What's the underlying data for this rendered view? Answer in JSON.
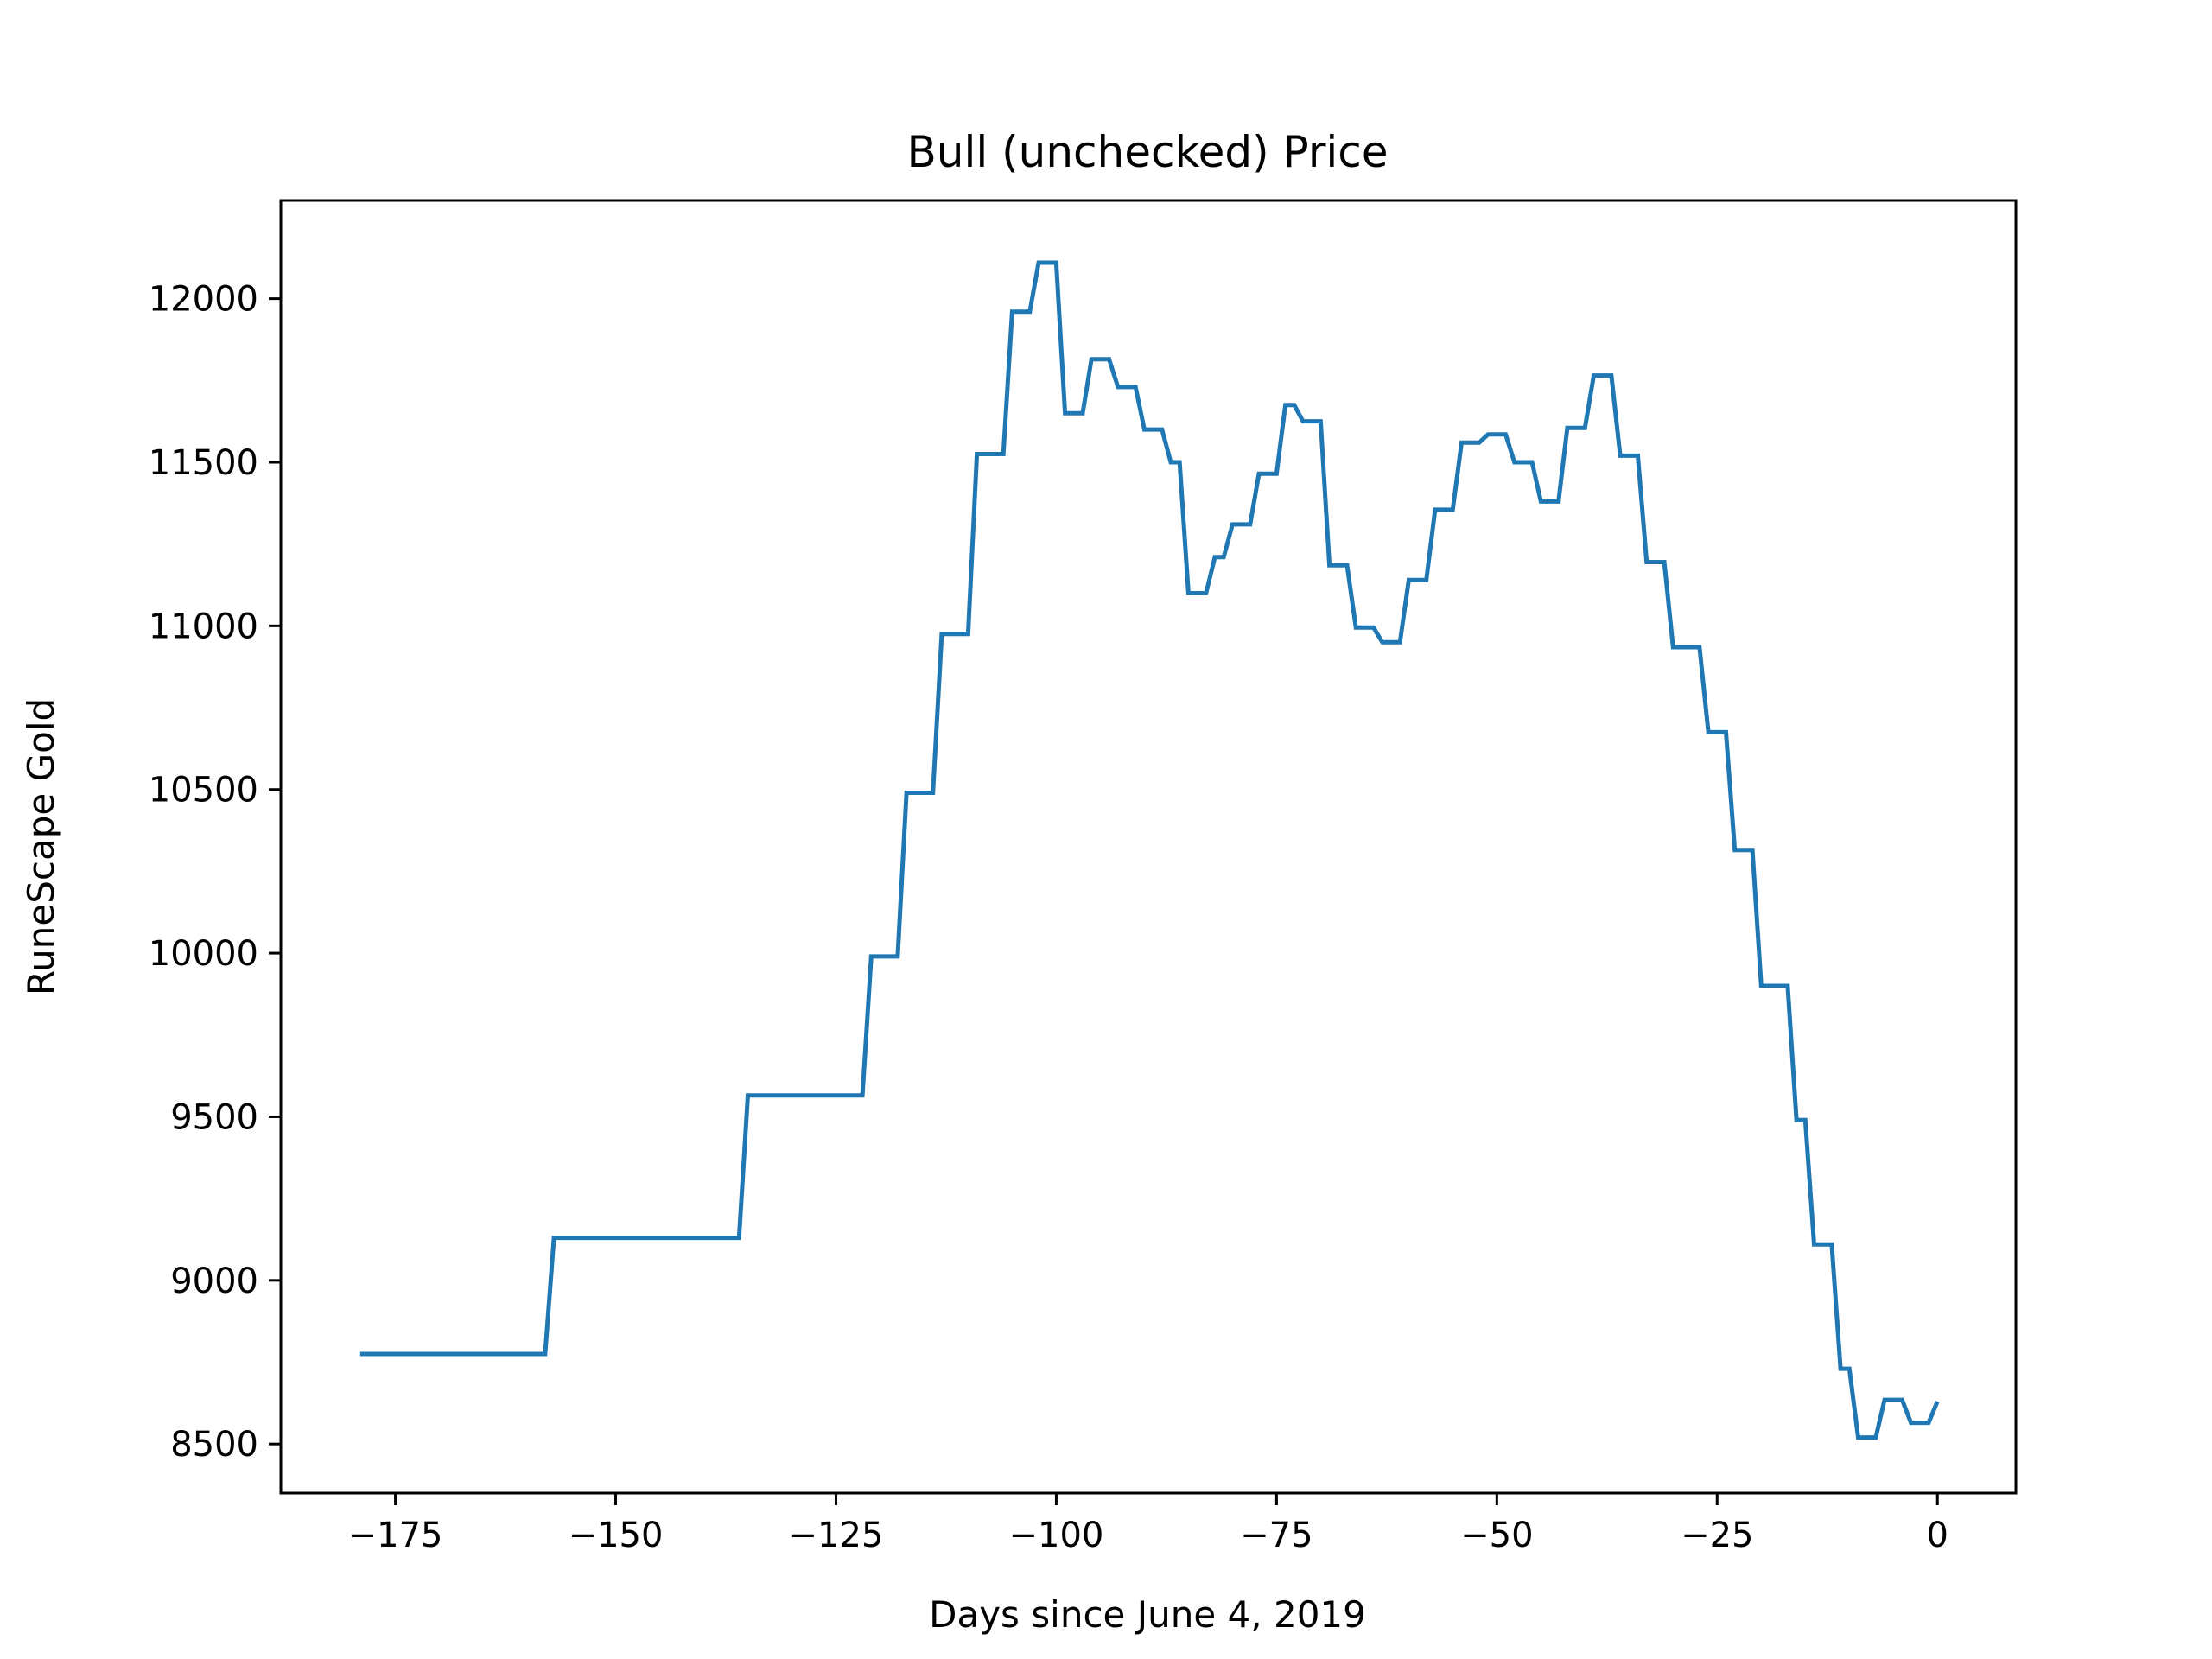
{
  "chart_data": {
    "type": "line",
    "title": "Bull (unchecked) Price",
    "xlabel": "Days since June 4, 2019",
    "ylabel": "RuneScape Gold",
    "xlim": [
      -188,
      8.9
    ],
    "ylim": [
      8350,
      12300
    ],
    "xticks": [
      -175,
      -150,
      -125,
      -100,
      -75,
      -50,
      -25,
      0
    ],
    "xtick_labels": [
      "−175",
      "−150",
      "−125",
      "−100",
      "−75",
      "−50",
      "−25",
      "0"
    ],
    "yticks": [
      8500,
      9000,
      9500,
      10000,
      10500,
      11000,
      11500,
      12000
    ],
    "ytick_labels": [
      "8500",
      "9000",
      "9500",
      "10000",
      "10500",
      "11000",
      "11500",
      "12000"
    ],
    "grid": false,
    "line_color": "#1f77b4",
    "series": [
      {
        "x": [
          -179,
          -158,
          -157,
          -136,
          -135,
          -122,
          -121,
          -118,
          -117,
          -114,
          -113,
          -110,
          -109,
          -106,
          -105,
          -103,
          -102,
          -100,
          -99,
          -97,
          -96,
          -94,
          -93,
          -91,
          -90,
          -88,
          -87,
          -86,
          -85,
          -83,
          -82,
          -81,
          -80,
          -78,
          -77,
          -75,
          -74,
          -73,
          -72,
          -70,
          -69,
          -67,
          -66,
          -64,
          -63,
          -61,
          -60,
          -58,
          -57,
          -55,
          -54,
          -52,
          -51,
          -49,
          -48,
          -46,
          -45,
          -43,
          -42,
          -40,
          -39,
          -37,
          -36,
          -34,
          -33,
          -31,
          -30,
          -27,
          -26,
          -24,
          -23,
          -21,
          -20,
          -17,
          -16,
          -15,
          -14,
          -12,
          -11,
          -10,
          -9,
          -7,
          -6,
          -4,
          -3,
          -1,
          0
        ],
        "y": [
          8775,
          8775,
          9130,
          9130,
          9565,
          9565,
          9990,
          9990,
          10490,
          10490,
          10975,
          10975,
          11525,
          11525,
          11960,
          11960,
          12110,
          12110,
          11650,
          11650,
          11815,
          11815,
          11730,
          11730,
          11600,
          11600,
          11500,
          11500,
          11100,
          11100,
          11210,
          11210,
          11310,
          11310,
          11465,
          11465,
          11675,
          11675,
          11625,
          11625,
          11185,
          11185,
          10995,
          10995,
          10950,
          10950,
          11140,
          11140,
          11355,
          11355,
          11560,
          11560,
          11585,
          11585,
          11500,
          11500,
          11380,
          11380,
          11605,
          11605,
          11765,
          11765,
          11520,
          11520,
          11195,
          11195,
          10935,
          10935,
          10675,
          10675,
          10315,
          10315,
          9900,
          9900,
          9490,
          9490,
          9110,
          9110,
          8730,
          8730,
          8520,
          8520,
          8635,
          8635,
          8565,
          8565,
          8630
        ]
      }
    ]
  }
}
